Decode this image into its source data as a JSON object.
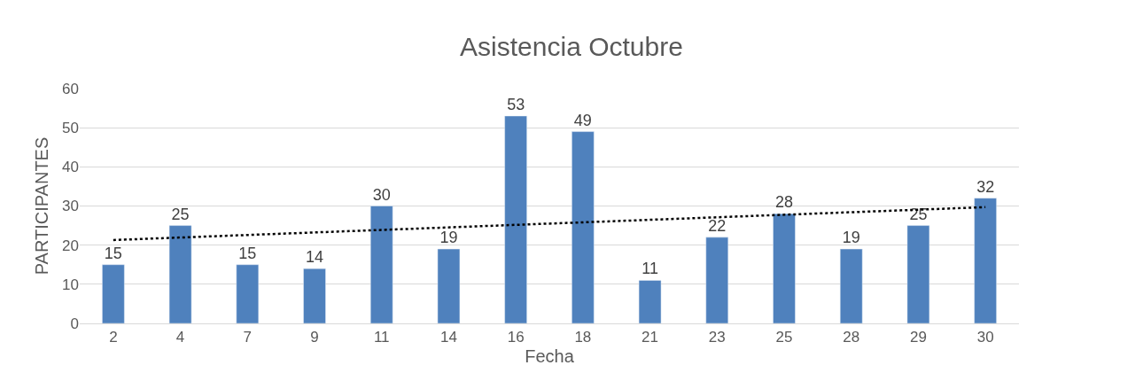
{
  "chart_data": {
    "type": "bar",
    "title": "Asistencia Octubre",
    "xlabel": "Fecha",
    "ylabel": "PARTICIPANTES",
    "categories": [
      "2",
      "4",
      "7",
      "9",
      "11",
      "14",
      "16",
      "18",
      "21",
      "23",
      "25",
      "28",
      "29",
      "30"
    ],
    "series": [
      {
        "color": "#4f81bd",
        "values": [
          15,
          25,
          15,
          14,
          30,
          19,
          53,
          49,
          11,
          22,
          28,
          19,
          25,
          32
        ],
        "data_labels": true
      },
      {
        "type": "line",
        "color": "#000000",
        "x": [
          "2",
          "30"
        ],
        "values": [
          21.3,
          29.7
        ],
        "marker": "none",
        "line_style": "dotted"
      }
    ],
    "ylim": [
      0,
      60
    ],
    "yticks": [
      0,
      10,
      20,
      30,
      40,
      50,
      60
    ],
    "grid": "y",
    "legend": false
  }
}
